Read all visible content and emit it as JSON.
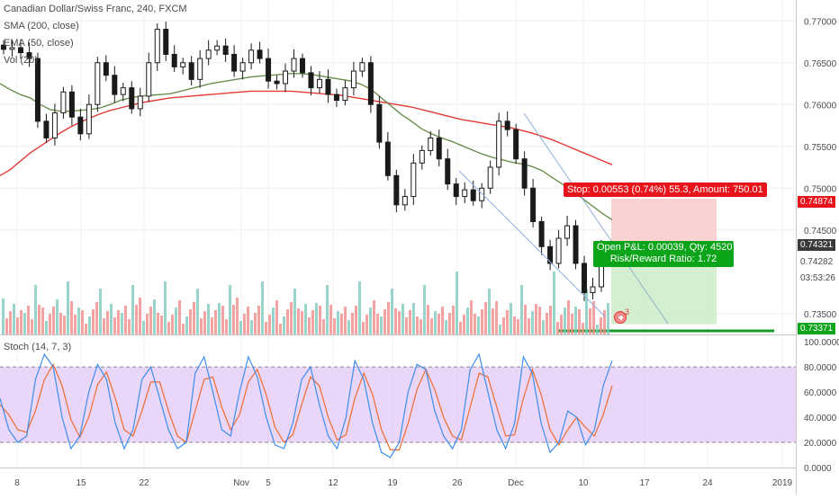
{
  "colors": {
    "candle": "#1a1a1a",
    "sma": "#e53935",
    "ema": "#6b8e4e",
    "vol_up": "#7fc9bd",
    "vol_down": "#f28b8b",
    "stoch_k": "#3d8eef",
    "stoch_d": "#ef6c2f",
    "stoch_band": "#e1c8f5",
    "stop_zone": "#f8caca",
    "target_zone": "#cdecc8",
    "stop_label": "#e8141c",
    "pnl_label": "#0ca419",
    "entry_line": "#159a2a",
    "trend_line": "#8fb0d6"
  },
  "legends": {
    "title": "Canadian Dollar/Swiss Franc, 240, FXCM",
    "sma": "SMA (200, close)",
    "ema": "EMA (50, close)",
    "vol": "Vol (20)",
    "stoch": "Stoch (14, 7, 3)"
  },
  "position": {
    "stop_text": "Stop: 0.00553 (0.74%) 55.3, Amount: 750.01",
    "pnl_text": "Open P&L: 0.00039, Qty: 45207",
    "rr_text": "Risk/Reward Ratio: 1.72",
    "stop_price": 0.74874,
    "entry_price": 0.74321,
    "target_price": 0.73371,
    "marker_count": "3"
  },
  "price_axis": {
    "ticks": [
      "0.77000",
      "0.76500",
      "0.76000",
      "0.75500",
      "0.75000",
      "0.74500",
      "0.73500"
    ],
    "tags": [
      {
        "text": "0.74874",
        "kind": "stop"
      },
      {
        "text": "0.74321",
        "kind": "last"
      },
      {
        "text": "0.74282",
        "kind": "plain"
      },
      {
        "text": "03:53:26",
        "kind": "plain"
      },
      {
        "text": "0.73371",
        "kind": "target"
      }
    ]
  },
  "stoch_axis": {
    "ticks": [
      "100.0000",
      "80.0000",
      "60.0000",
      "40.0000",
      "20.0000",
      "0.0000"
    ]
  },
  "time_axis": {
    "labels": [
      "8",
      "15",
      "22",
      "Nov",
      "5",
      "12",
      "19",
      "26",
      "Dec",
      "10",
      "17",
      "24",
      "2019"
    ]
  },
  "chart_data": {
    "type": "line",
    "title": "Canadian Dollar/Swiss Franc, 240, FXCM",
    "xlabel": "",
    "ylabel": "",
    "ylim": [
      0.7325,
      0.7725
    ],
    "stoch_ylim": [
      0,
      100
    ],
    "grid": true,
    "x_labels": [
      "8",
      "15",
      "22",
      "Nov",
      "5",
      "12",
      "19",
      "26",
      "Dec",
      "10",
      "17",
      "24",
      "2019"
    ],
    "series": [
      {
        "name": "Close",
        "kind": "candles",
        "values": [
          0.7666,
          0.7668,
          0.7662,
          0.7655,
          0.758,
          0.756,
          0.759,
          0.7615,
          0.7585,
          0.7565,
          0.76,
          0.765,
          0.7635,
          0.7612,
          0.762,
          0.7595,
          0.761,
          0.765,
          0.769,
          0.766,
          0.7645,
          0.765,
          0.763,
          0.7655,
          0.7665,
          0.767,
          0.766,
          0.764,
          0.765,
          0.7665,
          0.7655,
          0.7628,
          0.7625,
          0.764,
          0.7655,
          0.7638,
          0.762,
          0.763,
          0.7612,
          0.7605,
          0.762,
          0.764,
          0.765,
          0.76,
          0.7555,
          0.7515,
          0.748,
          0.749,
          0.753,
          0.7545,
          0.756,
          0.7535,
          0.7505,
          0.749,
          0.7498,
          0.7485,
          0.75,
          0.7525,
          0.758,
          0.757,
          0.7535,
          0.75,
          0.746,
          0.743,
          0.741,
          0.744,
          0.7455,
          0.741,
          0.7375,
          0.7382,
          0.7432
        ]
      },
      {
        "name": "SMA (200, close)",
        "kind": "line",
        "values": [
          0.7515,
          0.7522,
          0.7532,
          0.7542,
          0.755,
          0.7558,
          0.7566,
          0.7573,
          0.7579,
          0.7584,
          0.7589,
          0.7593,
          0.7596,
          0.7599,
          0.7602,
          0.7604,
          0.7606,
          0.7608,
          0.7609,
          0.761,
          0.7611,
          0.7612,
          0.7613,
          0.7614,
          0.7615,
          0.7616,
          0.7616,
          0.7616,
          0.7616,
          0.7616,
          0.7615,
          0.7614,
          0.7613,
          0.7612,
          0.7611,
          0.7609,
          0.7607,
          0.7605,
          0.7603,
          0.7601,
          0.7599,
          0.7597,
          0.7594,
          0.7591,
          0.7588,
          0.7585,
          0.7582,
          0.758,
          0.7578,
          0.7576,
          0.7574,
          0.7572,
          0.7569,
          0.7566,
          0.7562,
          0.7558,
          0.7553,
          0.7548,
          0.7543,
          0.7538,
          0.7533,
          0.7528
        ]
      },
      {
        "name": "EMA (50, close)",
        "kind": "line",
        "values": [
          0.7625,
          0.7618,
          0.7612,
          0.7608,
          0.76,
          0.7594,
          0.7592,
          0.7592,
          0.7593,
          0.7594,
          0.7596,
          0.76,
          0.7605,
          0.7608,
          0.761,
          0.7611,
          0.7612,
          0.7613,
          0.7616,
          0.7619,
          0.7622,
          0.7625,
          0.7627,
          0.7629,
          0.7631,
          0.7633,
          0.7634,
          0.7635,
          0.7636,
          0.7637,
          0.7637,
          0.7636,
          0.7634,
          0.7632,
          0.763,
          0.7628,
          0.7624,
          0.7618,
          0.7608,
          0.7598,
          0.7588,
          0.758,
          0.7571,
          0.7565,
          0.756,
          0.7556,
          0.7551,
          0.7546,
          0.7541,
          0.7537,
          0.7534,
          0.7531,
          0.7529,
          0.7526,
          0.7521,
          0.7513,
          0.7505,
          0.7497,
          0.7488,
          0.7479,
          0.747,
          0.7462
        ]
      },
      {
        "name": "Stoch %K",
        "kind": "stoch",
        "values": [
          55,
          30,
          20,
          25,
          70,
          90,
          80,
          40,
          15,
          25,
          60,
          82,
          70,
          35,
          15,
          30,
          70,
          80,
          55,
          30,
          15,
          20,
          75,
          88,
          60,
          30,
          25,
          60,
          88,
          72,
          40,
          18,
          15,
          35,
          70,
          80,
          50,
          25,
          15,
          40,
          85,
          70,
          35,
          12,
          8,
          20,
          60,
          82,
          78,
          45,
          25,
          15,
          30,
          78,
          90,
          60,
          30,
          15,
          35,
          88,
          75,
          35,
          12,
          20,
          45,
          40,
          18,
          30,
          65,
          85
        ]
      },
      {
        "name": "Stoch %D",
        "kind": "stoch",
        "values": [
          50,
          42,
          30,
          28,
          45,
          70,
          82,
          65,
          38,
          24,
          40,
          66,
          76,
          55,
          30,
          25,
          45,
          68,
          68,
          45,
          25,
          20,
          45,
          70,
          72,
          48,
          30,
          42,
          68,
          78,
          58,
          32,
          20,
          26,
          50,
          72,
          65,
          40,
          22,
          26,
          55,
          75,
          58,
          30,
          14,
          14,
          35,
          62,
          78,
          62,
          40,
          25,
          22,
          48,
          75,
          72,
          48,
          25,
          26,
          55,
          78,
          58,
          30,
          18,
          30,
          40,
          32,
          25,
          42,
          65
        ]
      }
    ]
  }
}
